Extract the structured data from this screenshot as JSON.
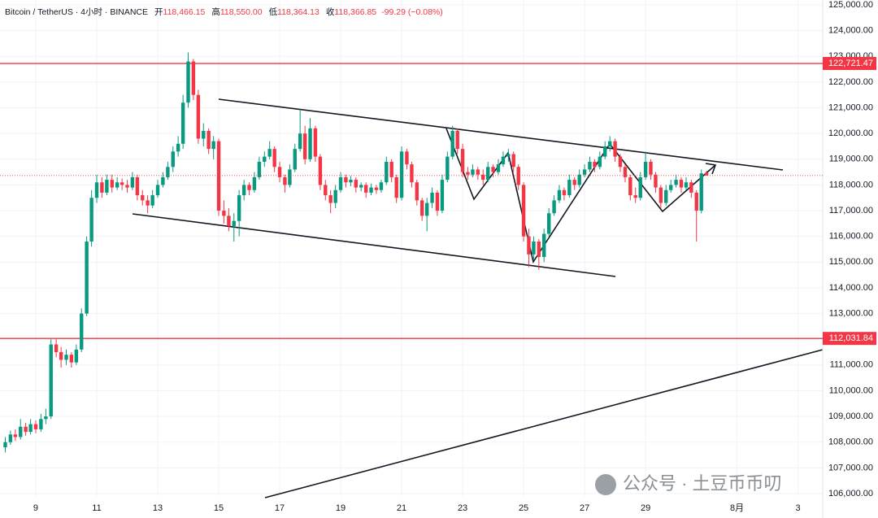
{
  "chart_data": {
    "type": "candlestick",
    "header": {
      "symbol": "Bitcoin / TetherUS · 4小时 · BINANCE",
      "ohlc": [
        {
          "label": "开",
          "value": "118,466.15"
        },
        {
          "label": "高",
          "value": "118,550.00"
        },
        {
          "label": "低",
          "value": "118,364.13"
        },
        {
          "label": "收",
          "value": "118,366.85"
        }
      ],
      "change": "-99.29 (−0.08%)"
    },
    "watermark": "公众号 · 土豆币币叨",
    "up_color": "#089981",
    "down_color": "#f23645",
    "xlim": [
      7.827,
      34.81
    ],
    "xticks": [
      9,
      11,
      13,
      15,
      17,
      19,
      21,
      23,
      25,
      27,
      29,
      {
        "value": 32,
        "label": "8月"
      },
      {
        "value": 34,
        "label": "3"
      }
    ],
    "ylim": [
      106000,
      125000
    ],
    "yticks": [
      {
        "value": 106000,
        "label": "106,000.00"
      },
      {
        "value": 107000,
        "label": "107,000.00"
      },
      {
        "value": 108000,
        "label": "108,000.00"
      },
      {
        "value": 109000,
        "label": "109,000.00"
      },
      {
        "value": 110000,
        "label": "110,000.00"
      },
      {
        "value": 111000,
        "label": "111,000.00"
      },
      {
        "value": 112000,
        "label": "112,000.00"
      },
      {
        "value": 113000,
        "label": "113,000.00"
      },
      {
        "value": 114000,
        "label": "114,000.00"
      },
      {
        "value": 115000,
        "label": "115,000.00"
      },
      {
        "value": 116000,
        "label": "116,000.00"
      },
      {
        "value": 117000,
        "label": "117,000.00"
      },
      {
        "value": 118000,
        "label": "118,000.00"
      },
      {
        "value": 119000,
        "label": "119,000.00"
      },
      {
        "value": 120000,
        "label": "120,000.00"
      },
      {
        "value": 121000,
        "label": "121,000.00"
      },
      {
        "value": 122000,
        "label": "122,000.00"
      },
      {
        "value": 123000,
        "label": "123,000.00"
      },
      {
        "value": 124000,
        "label": "124,000.00"
      },
      {
        "value": 125000,
        "label": "125,000.00"
      }
    ],
    "price_lines": [
      {
        "value": 122721.47,
        "label": "122,721.47",
        "color": "#f23645"
      },
      {
        "value": 112031.84,
        "label": "112,031.84",
        "color": "#f23645"
      }
    ],
    "x": [
      8,
      8.17,
      8.33,
      8.5,
      8.67,
      8.83,
      9,
      9.17,
      9.33,
      9.5,
      9.67,
      9.83,
      10,
      10.17,
      10.33,
      10.5,
      10.67,
      10.83,
      11,
      11.17,
      11.33,
      11.5,
      11.67,
      11.83,
      12,
      12.17,
      12.33,
      12.5,
      12.67,
      12.83,
      13,
      13.17,
      13.33,
      13.5,
      13.67,
      13.83,
      14,
      14.17,
      14.33,
      14.5,
      14.67,
      14.83,
      15,
      15.17,
      15.33,
      15.5,
      15.67,
      15.83,
      16,
      16.17,
      16.33,
      16.5,
      16.67,
      16.83,
      17,
      17.17,
      17.33,
      17.5,
      17.67,
      17.83,
      18,
      18.17,
      18.33,
      18.5,
      18.67,
      18.83,
      19,
      19.17,
      19.33,
      19.5,
      19.67,
      19.83,
      20,
      20.17,
      20.33,
      20.5,
      20.67,
      20.83,
      21,
      21.17,
      21.33,
      21.5,
      21.67,
      21.83,
      22,
      22.17,
      22.33,
      22.5,
      22.67,
      22.83,
      23,
      23.17,
      23.33,
      23.5,
      23.67,
      23.83,
      24,
      24.17,
      24.33,
      24.5,
      24.67,
      24.83,
      25,
      25.17,
      25.33,
      25.5,
      25.67,
      25.83,
      26,
      26.17,
      26.33,
      26.5,
      26.67,
      26.83,
      27,
      27.17,
      27.33,
      27.5,
      27.67,
      27.83,
      28,
      28.17,
      28.33,
      28.5,
      28.67,
      28.83,
      29,
      29.17,
      29.33,
      29.5,
      29.67,
      29.83,
      30,
      30.17,
      30.33,
      30.5,
      30.67,
      30.83,
      31
    ],
    "candles": [
      [
        107800,
        108200,
        107600,
        108000
      ],
      [
        108000,
        108450,
        107900,
        108300
      ],
      [
        108300,
        108500,
        108050,
        108200
      ],
      [
        108200,
        108900,
        108100,
        108600
      ],
      [
        108600,
        108750,
        108250,
        108400
      ],
      [
        108400,
        108900,
        108300,
        108700
      ],
      [
        108700,
        108850,
        108350,
        108500
      ],
      [
        108500,
        109100,
        108400,
        108900
      ],
      [
        108900,
        109300,
        108700,
        109000
      ],
      [
        109000,
        112000,
        108900,
        111800
      ],
      [
        111800,
        112000,
        111300,
        111500
      ],
      [
        111500,
        111700,
        110900,
        111200
      ],
      [
        111200,
        111600,
        111000,
        111400
      ],
      [
        111400,
        111500,
        110900,
        111100
      ],
      [
        111100,
        111800,
        111000,
        111600
      ],
      [
        111600,
        113200,
        111500,
        113000
      ],
      [
        113000,
        116000,
        112900,
        115800
      ],
      [
        115800,
        117800,
        115600,
        117500
      ],
      [
        117500,
        118400,
        117300,
        118100
      ],
      [
        118100,
        118300,
        117500,
        117700
      ],
      [
        117700,
        118400,
        117600,
        118200
      ],
      [
        118200,
        118400,
        117700,
        117900
      ],
      [
        117900,
        118300,
        117800,
        118100
      ],
      [
        118100,
        118250,
        117800,
        118000
      ],
      [
        118000,
        118200,
        117700,
        117900
      ],
      [
        117900,
        118500,
        117800,
        118300
      ],
      [
        118300,
        118400,
        117400,
        117600
      ],
      [
        117600,
        117800,
        117200,
        117400
      ],
      [
        117400,
        117600,
        116900,
        117200
      ],
      [
        117200,
        117800,
        117100,
        117600
      ],
      [
        117600,
        118200,
        117500,
        118000
      ],
      [
        118000,
        118500,
        117900,
        118300
      ],
      [
        118300,
        118900,
        118200,
        118700
      ],
      [
        118700,
        119500,
        118500,
        119300
      ],
      [
        119300,
        119900,
        119100,
        119600
      ],
      [
        119600,
        121500,
        119400,
        121200
      ],
      [
        121200,
        123150,
        121000,
        122800
      ],
      [
        122800,
        122900,
        121300,
        121500
      ],
      [
        121500,
        121700,
        119600,
        119800
      ],
      [
        119800,
        120400,
        119500,
        120100
      ],
      [
        120100,
        120200,
        119200,
        119400
      ],
      [
        119400,
        119900,
        119000,
        119700
      ],
      [
        119700,
        119800,
        116800,
        117000
      ],
      [
        117000,
        117400,
        116500,
        116800
      ],
      [
        116800,
        117100,
        116200,
        116400
      ],
      [
        116400,
        116900,
        115800,
        116600
      ],
      [
        116600,
        117800,
        116000,
        117600
      ],
      [
        117600,
        118200,
        117400,
        118000
      ],
      [
        118000,
        118100,
        117600,
        117800
      ],
      [
        117800,
        118500,
        117700,
        118300
      ],
      [
        118300,
        119100,
        118200,
        118900
      ],
      [
        118900,
        119300,
        118700,
        119100
      ],
      [
        119100,
        119700,
        119000,
        119400
      ],
      [
        119400,
        119500,
        118500,
        118700
      ],
      [
        118700,
        118900,
        118100,
        118300
      ],
      [
        118300,
        118400,
        117700,
        118000
      ],
      [
        118000,
        118800,
        117900,
        118600
      ],
      [
        118600,
        119600,
        118500,
        119400
      ],
      [
        119400,
        120900,
        119300,
        120000
      ],
      [
        120000,
        120300,
        118800,
        119000
      ],
      [
        119000,
        120600,
        118900,
        120200
      ],
      [
        120200,
        120300,
        118900,
        119100
      ],
      [
        119100,
        119200,
        117800,
        118000
      ],
      [
        118000,
        118200,
        117400,
        117600
      ],
      [
        117600,
        117800,
        116900,
        117300
      ],
      [
        117300,
        118000,
        117100,
        117800
      ],
      [
        117800,
        118500,
        117700,
        118300
      ],
      [
        118300,
        118400,
        117900,
        118100
      ],
      [
        118100,
        118350,
        117950,
        118200
      ],
      [
        118200,
        118300,
        117700,
        117900
      ],
      [
        117900,
        118100,
        117750,
        118000
      ],
      [
        118000,
        118100,
        117500,
        117700
      ],
      [
        117700,
        118050,
        117600,
        117900
      ],
      [
        117900,
        118000,
        117650,
        117800
      ],
      [
        117800,
        118200,
        117700,
        118100
      ],
      [
        118100,
        119100,
        118000,
        118900
      ],
      [
        118900,
        119000,
        118100,
        118300
      ],
      [
        118300,
        118400,
        117300,
        117500
      ],
      [
        117500,
        119500,
        117400,
        119300
      ],
      [
        119300,
        119400,
        118600,
        118800
      ],
      [
        118800,
        118900,
        117900,
        118100
      ],
      [
        118100,
        118200,
        117200,
        117400
      ],
      [
        117400,
        117500,
        116600,
        116800
      ],
      [
        116800,
        117500,
        116200,
        117300
      ],
      [
        117300,
        117900,
        117100,
        117700
      ],
      [
        117700,
        117800,
        116800,
        117000
      ],
      [
        117000,
        118400,
        116900,
        118200
      ],
      [
        118200,
        119300,
        118100,
        119100
      ],
      [
        119100,
        120300,
        119000,
        120100
      ],
      [
        120100,
        120200,
        119200,
        119400
      ],
      [
        119400,
        119600,
        118300,
        118500
      ],
      [
        118500,
        118700,
        118200,
        118400
      ],
      [
        118400,
        118800,
        118300,
        118600
      ],
      [
        118600,
        118700,
        118200,
        118400
      ],
      [
        118400,
        118600,
        118000,
        118200
      ],
      [
        118200,
        118900,
        118100,
        118700
      ],
      [
        118700,
        118800,
        118300,
        118500
      ],
      [
        118500,
        119000,
        118400,
        118800
      ],
      [
        118800,
        119300,
        118700,
        119100
      ],
      [
        119100,
        119400,
        118900,
        119200
      ],
      [
        119200,
        119300,
        118500,
        118700
      ],
      [
        118700,
        118800,
        117800,
        118000
      ],
      [
        118000,
        118100,
        115800,
        116000
      ],
      [
        116000,
        116300,
        114800,
        115300
      ],
      [
        115300,
        116000,
        115100,
        115800
      ],
      [
        115800,
        115900,
        114700,
        115200
      ],
      [
        115200,
        116300,
        115000,
        116100
      ],
      [
        116100,
        117100,
        116000,
        116900
      ],
      [
        116900,
        117600,
        116800,
        117400
      ],
      [
        117400,
        118000,
        117300,
        117800
      ],
      [
        117800,
        117900,
        117400,
        117600
      ],
      [
        117600,
        118400,
        117500,
        118200
      ],
      [
        118200,
        118300,
        117800,
        118000
      ],
      [
        118000,
        118600,
        117900,
        118400
      ],
      [
        118400,
        118800,
        118300,
        118600
      ],
      [
        118600,
        119100,
        118500,
        118900
      ],
      [
        118900,
        119000,
        118500,
        118700
      ],
      [
        118700,
        119300,
        118600,
        119100
      ],
      [
        119100,
        119700,
        119000,
        119500
      ],
      [
        119500,
        119900,
        119300,
        119700
      ],
      [
        119700,
        119800,
        118900,
        119100
      ],
      [
        119100,
        119200,
        118500,
        118700
      ],
      [
        118700,
        118800,
        118100,
        118300
      ],
      [
        118300,
        118400,
        117400,
        117600
      ],
      [
        117600,
        117900,
        117300,
        117500
      ],
      [
        117500,
        118500,
        117400,
        118300
      ],
      [
        118300,
        119300,
        118200,
        118900
      ],
      [
        118900,
        119000,
        118200,
        118400
      ],
      [
        118400,
        118500,
        117700,
        117900
      ],
      [
        117900,
        118000,
        117100,
        117300
      ],
      [
        117300,
        118000,
        117200,
        117800
      ],
      [
        117800,
        118200,
        117700,
        118000
      ],
      [
        118000,
        118400,
        117900,
        118200
      ],
      [
        118200,
        118300,
        117700,
        117900
      ],
      [
        117900,
        118300,
        117800,
        118100
      ],
      [
        118100,
        118200,
        117500,
        117700
      ],
      [
        117700,
        117800,
        115800,
        117000
      ],
      [
        117000,
        118600,
        116900,
        118450
      ],
      [
        118466.15,
        118550,
        118364.13,
        118366.85
      ]
    ]
  }
}
